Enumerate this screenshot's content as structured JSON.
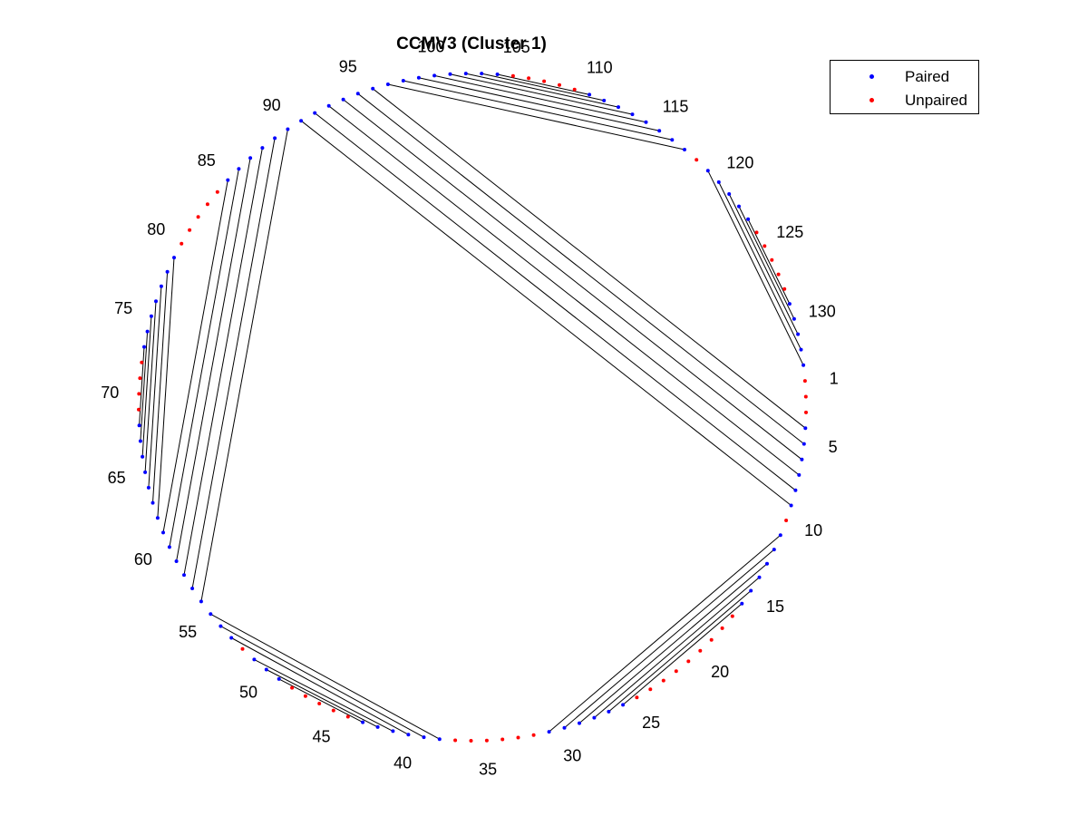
{
  "chart_data": {
    "type": "arc",
    "title": "CCMV3 (Cluster 1)",
    "sequence_length": 133,
    "legend": [
      {
        "label": "Paired",
        "color": "#0000ff"
      },
      {
        "label": "Unpaired",
        "color": "#ff0000"
      }
    ],
    "position_labels": [
      1,
      5,
      10,
      15,
      20,
      25,
      30,
      35,
      40,
      45,
      50,
      55,
      60,
      65,
      70,
      75,
      80,
      85,
      90,
      95,
      100,
      105,
      110,
      115,
      120,
      125,
      130
    ],
    "pairs": [
      [
        4,
        96
      ],
      [
        5,
        95
      ],
      [
        6,
        94
      ],
      [
        7,
        93
      ],
      [
        8,
        92
      ],
      [
        9,
        91
      ],
      [
        11,
        31
      ],
      [
        12,
        30
      ],
      [
        13,
        29
      ],
      [
        14,
        28
      ],
      [
        15,
        27
      ],
      [
        16,
        26
      ],
      [
        38,
        55
      ],
      [
        39,
        54
      ],
      [
        40,
        53
      ],
      [
        41,
        51
      ],
      [
        42,
        50
      ],
      [
        43,
        49
      ],
      [
        56,
        90
      ],
      [
        57,
        89
      ],
      [
        58,
        88
      ],
      [
        59,
        87
      ],
      [
        60,
        86
      ],
      [
        61,
        85
      ],
      [
        62,
        79
      ],
      [
        63,
        78
      ],
      [
        64,
        77
      ],
      [
        65,
        76
      ],
      [
        66,
        75
      ],
      [
        67,
        74
      ],
      [
        68,
        73
      ],
      [
        97,
        117
      ],
      [
        98,
        116
      ],
      [
        99,
        115
      ],
      [
        100,
        114
      ],
      [
        101,
        113
      ],
      [
        102,
        112
      ],
      [
        103,
        111
      ],
      [
        104,
        110
      ],
      [
        119,
        133
      ],
      [
        120,
        132
      ],
      [
        121,
        131
      ],
      [
        122,
        130
      ],
      [
        123,
        129
      ]
    ]
  }
}
